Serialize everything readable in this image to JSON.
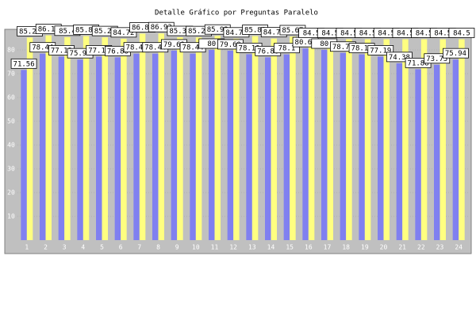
{
  "chart_data": {
    "type": "bar",
    "title": "Detalle Gráfico por Preguntas Paralelo",
    "categories": [
      "1",
      "2",
      "3",
      "4",
      "5",
      "6",
      "7",
      "8",
      "9",
      "10",
      "11",
      "12",
      "13",
      "14",
      "15",
      "16",
      "17",
      "18",
      "19",
      "20",
      "21",
      "22",
      "23",
      "24"
    ],
    "series": [
      {
        "color": "#8080f0",
        "values": [
          71.56,
          78.44,
          77.19,
          75.94,
          77.19,
          76.88,
          78.44,
          78.44,
          79.69,
          78.44,
          80.0,
          79.69,
          78.19,
          76.88,
          78.1,
          80.62,
          80.0,
          78.75,
          78.12,
          77.19,
          74.38,
          71.88,
          73.75,
          75.94
        ]
      },
      {
        "color": "#ffff80",
        "values": [
          85.21,
          86.14,
          85.4,
          85.84,
          85.29,
          84.72,
          86.84,
          86.93,
          85.33,
          85.28,
          85.93,
          84.74,
          85.83,
          84.79,
          85.67,
          84.5,
          84.5,
          84.5,
          84.5,
          84.5,
          84.5,
          84.5,
          84.5,
          84.5
        ]
      }
    ],
    "ylim": [
      0,
      90
    ],
    "yticks": [
      10,
      20,
      30,
      40,
      50,
      60,
      70,
      80
    ],
    "background": "#c0c0c0"
  }
}
